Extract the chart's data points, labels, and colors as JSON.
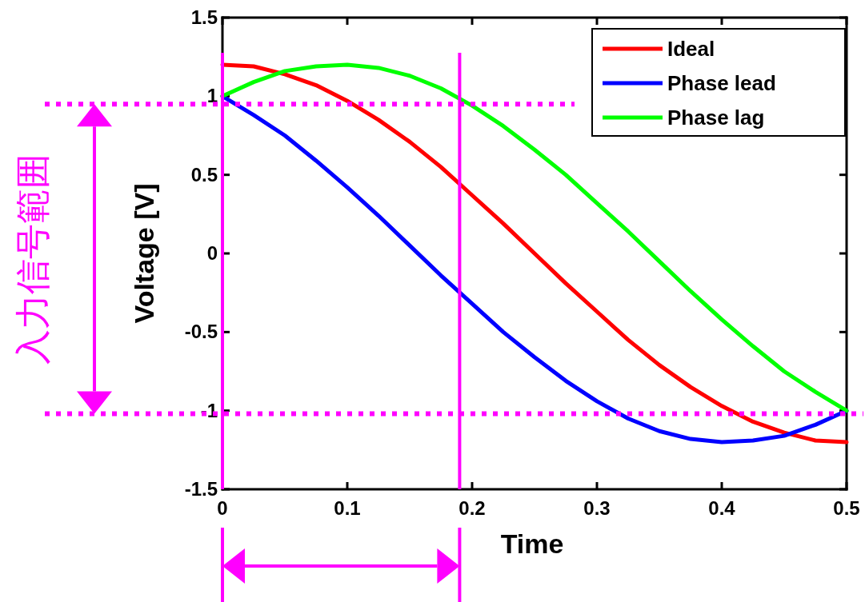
{
  "chart_data": {
    "type": "line",
    "xlabel": "Time",
    "ylabel": "Voltage [V]",
    "x": [
      0,
      0.025,
      0.05,
      0.075,
      0.1,
      0.125,
      0.15,
      0.175,
      0.2,
      0.225,
      0.25,
      0.275,
      0.3,
      0.325,
      0.35,
      0.375,
      0.4,
      0.425,
      0.45,
      0.475,
      0.5
    ],
    "series": [
      {
        "name": "Ideal",
        "color": "#ff0000",
        "values": [
          1.2,
          1.19,
          1.14,
          1.07,
          0.97,
          0.85,
          0.71,
          0.55,
          0.37,
          0.19,
          0,
          -0.19,
          -0.37,
          -0.55,
          -0.71,
          -0.85,
          -0.97,
          -1.07,
          -1.14,
          -1.19,
          -1.2
        ]
      },
      {
        "name": "Phase lead",
        "color": "#0000ff",
        "values": [
          1.0,
          0.88,
          0.75,
          0.59,
          0.42,
          0.24,
          0.05,
          -0.14,
          -0.32,
          -0.5,
          -0.66,
          -0.81,
          -0.94,
          -1.05,
          -1.13,
          -1.18,
          -1.2,
          -1.19,
          -1.16,
          -1.09,
          -1.0
        ]
      },
      {
        "name": "Phase lag",
        "color": "#00ff00",
        "values": [
          1.0,
          1.09,
          1.16,
          1.19,
          1.2,
          1.18,
          1.13,
          1.05,
          0.94,
          0.81,
          0.66,
          0.5,
          0.32,
          0.14,
          -0.05,
          -0.24,
          -0.42,
          -0.59,
          -0.75,
          -0.88,
          -1.0
        ]
      }
    ],
    "xlim": [
      0,
      0.5
    ],
    "xticks": [
      0,
      0.1,
      0.2,
      0.3,
      0.4,
      0.5
    ],
    "ylim": [
      -1.5,
      1.5
    ],
    "yticks": [
      -1.5,
      -1,
      -0.5,
      0,
      0.5,
      1,
      1.5
    ],
    "grid": false,
    "legend": "top right",
    "marker": "none",
    "line_style": "solid",
    "ref_lines": [
      {
        "axis": "y",
        "value": 0.95,
        "color": "#ff00ff",
        "line_style": "dotted"
      },
      {
        "axis": "y",
        "value": -1.02,
        "color": "#ff00ff",
        "line_style": "dotted"
      },
      {
        "axis": "x",
        "value": 0,
        "color": "#ff00ff",
        "line_style": "solid"
      },
      {
        "axis": "x",
        "value": 0.19,
        "color": "#ff00ff",
        "line_style": "solid"
      }
    ],
    "annotations": [
      "入力信号範囲"
    ]
  }
}
